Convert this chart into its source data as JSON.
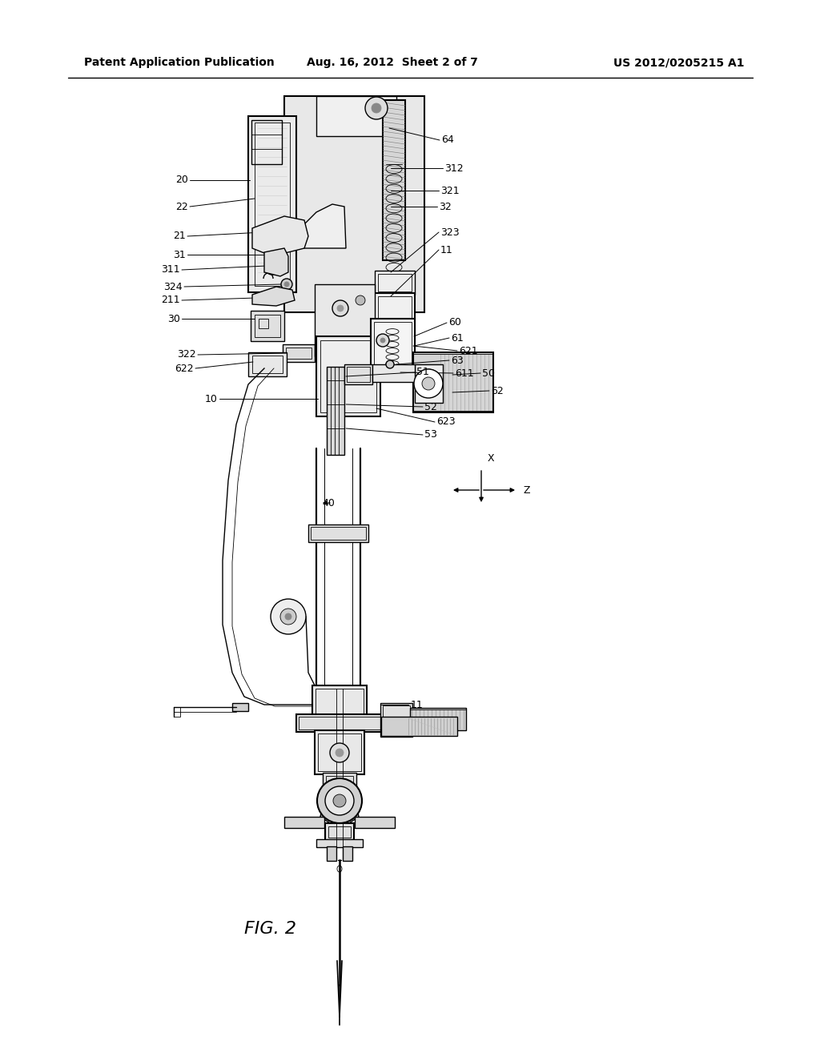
{
  "bg_color": "#ffffff",
  "line_color": "#000000",
  "header_left": "Patent Application Publication",
  "header_center": "Aug. 16, 2012  Sheet 2 of 7",
  "header_right": "US 2012/0205215 A1",
  "figure_label": "FIG. 2"
}
